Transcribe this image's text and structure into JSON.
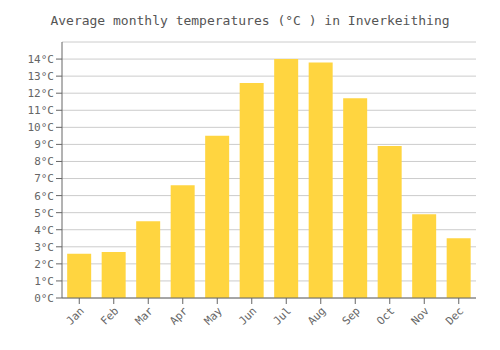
{
  "chart_data": {
    "type": "bar",
    "title": "Average monthly temperatures (°C ) in Inverkeithing",
    "categories": [
      "Jan",
      "Feb",
      "Mar",
      "Apr",
      "May",
      "Jun",
      "Jul",
      "Aug",
      "Sep",
      "Oct",
      "Nov",
      "Dec"
    ],
    "values": [
      2.6,
      2.7,
      4.5,
      6.6,
      9.5,
      12.6,
      14.0,
      13.8,
      11.7,
      8.9,
      4.9,
      3.5
    ],
    "color": "#FFD540",
    "ylim": [
      0,
      15
    ],
    "yticks": [
      {
        "value": 0,
        "label": "0°C"
      },
      {
        "value": 1,
        "label": "1°C"
      },
      {
        "value": 2,
        "label": "2°C"
      },
      {
        "value": 3,
        "label": "3°C"
      },
      {
        "value": 4,
        "label": "4°C"
      },
      {
        "value": 5,
        "label": "5°C"
      },
      {
        "value": 6,
        "label": "6°C"
      },
      {
        "value": 7,
        "label": "7°C"
      },
      {
        "value": 8,
        "label": "8°C"
      },
      {
        "value": 9,
        "label": "9°C"
      },
      {
        "value": 10,
        "label": "10°C"
      },
      {
        "value": 11,
        "label": "11°C"
      },
      {
        "value": 12,
        "label": "12°C"
      },
      {
        "value": 13,
        "label": "13°C"
      },
      {
        "value": 14,
        "label": "14°C"
      }
    ],
    "grid": true
  }
}
